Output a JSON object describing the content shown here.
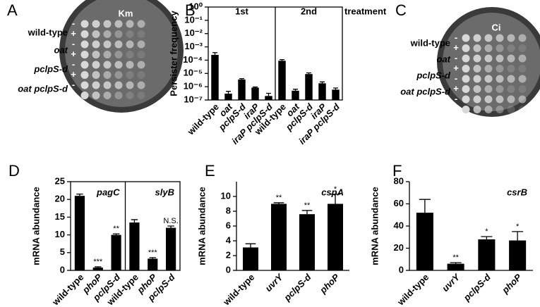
{
  "plates": [
    {
      "panel": "A",
      "antibiotic": "Km",
      "strains": [
        "wild-type",
        "oat",
        "pclpS-d",
        "oat pclpS-d"
      ],
      "signs": [
        "-",
        "+",
        "-",
        "+",
        "-",
        "+",
        "-",
        "+"
      ]
    },
    {
      "panel": "C",
      "antibiotic": "Ci",
      "strains": [
        "wild-type",
        "oat",
        "pclpS-d",
        "oat pclpS-d"
      ],
      "signs": [
        "-",
        "+",
        "-",
        "+",
        "-",
        "+",
        "-",
        "+"
      ]
    }
  ],
  "chart_data": [
    {
      "type": "bar",
      "panel": "B",
      "ylabel": "Persister frequency",
      "log": true,
      "annotation": "treatment",
      "ylim": [
        1e-07,
        1
      ],
      "yticks": [
        {
          "value": 1,
          "label": "10⁰"
        },
        {
          "value": 0.1,
          "label": "10⁻¹"
        },
        {
          "value": 0.01,
          "label": "10⁻²"
        },
        {
          "value": 0.001,
          "label": "10⁻³"
        },
        {
          "value": 0.0001,
          "label": "10⁻⁴"
        },
        {
          "value": 1e-05,
          "label": "10⁻⁵"
        },
        {
          "value": 1e-06,
          "label": "10⁻⁶"
        },
        {
          "value": 1e-07,
          "label": "10⁻⁷"
        }
      ],
      "color": "#000000",
      "groups": [
        {
          "name": "1st",
          "categories": [
            "wild-type",
            "oat",
            "pclpS-d",
            "iraP",
            "iraP pclpS-d"
          ],
          "values": [
            0.00025,
            3e-07,
            3.5e-06,
            8.5e-07,
            2e-07
          ],
          "errors": [
            0.00012,
            1.5e-07,
            6e-07,
            1e-07,
            1.2e-07
          ]
        },
        {
          "name": "2nd",
          "categories": [
            "wild-type",
            "oat",
            "pclpS-d",
            "iraP",
            "iraP pclpS-d"
          ],
          "values": [
            9e-05,
            5e-07,
            9e-06,
            1.8e-06,
            6e-07
          ],
          "errors": [
            2e-05,
            1.5e-07,
            2e-06,
            5e-07,
            2e-07
          ]
        }
      ]
    },
    {
      "type": "bar",
      "panel": "D",
      "ylabel": "mRNA abundance",
      "log": false,
      "ylim": [
        0,
        25
      ],
      "yticks": [
        0,
        5,
        10,
        15,
        20,
        25
      ],
      "color": "#000000",
      "groups": [
        {
          "name": "pagC",
          "categories": [
            "wild-type",
            "phoP",
            "pclpS-d"
          ],
          "values": [
            21,
            0.8,
            10
          ],
          "errors": [
            0.5,
            0.2,
            0.3
          ],
          "significance": [
            null,
            "***",
            "**"
          ]
        },
        {
          "name": "slyB",
          "categories": [
            "wild-type",
            "phoP",
            "pclpS-d"
          ],
          "values": [
            13.5,
            3.3,
            12
          ],
          "errors": [
            0.8,
            0.3,
            0.5
          ],
          "significance": [
            null,
            "***",
            "N.S."
          ]
        }
      ]
    },
    {
      "type": "bar",
      "panel": "E",
      "ylabel": "mRNA abundance",
      "log": false,
      "ylim": [
        0,
        12
      ],
      "yticks": [
        0,
        2,
        4,
        6,
        8,
        10
      ],
      "color": "#000000",
      "groups": [
        {
          "name": "cspA",
          "categories": [
            "wild-type",
            "uvrY",
            "pclpS-d",
            "phoP"
          ],
          "values": [
            3.1,
            9,
            7.6,
            9
          ],
          "errors": [
            0.5,
            0.15,
            0.5,
            1.3
          ],
          "significance": [
            null,
            "**",
            "**",
            "*"
          ]
        }
      ]
    },
    {
      "type": "bar",
      "panel": "F",
      "ylabel": "mRNA abundance",
      "log": false,
      "ylim": [
        0,
        80
      ],
      "yticks": [
        0,
        20,
        40,
        60,
        80
      ],
      "color": "#000000",
      "groups": [
        {
          "name": "csrB",
          "categories": [
            "wild-type",
            "uvrY",
            "pclpS-d",
            "phoP"
          ],
          "values": [
            52,
            6,
            28,
            27
          ],
          "errors": [
            12,
            1,
            2.5,
            8
          ],
          "significance": [
            null,
            "**",
            "*",
            "*"
          ]
        }
      ]
    }
  ]
}
